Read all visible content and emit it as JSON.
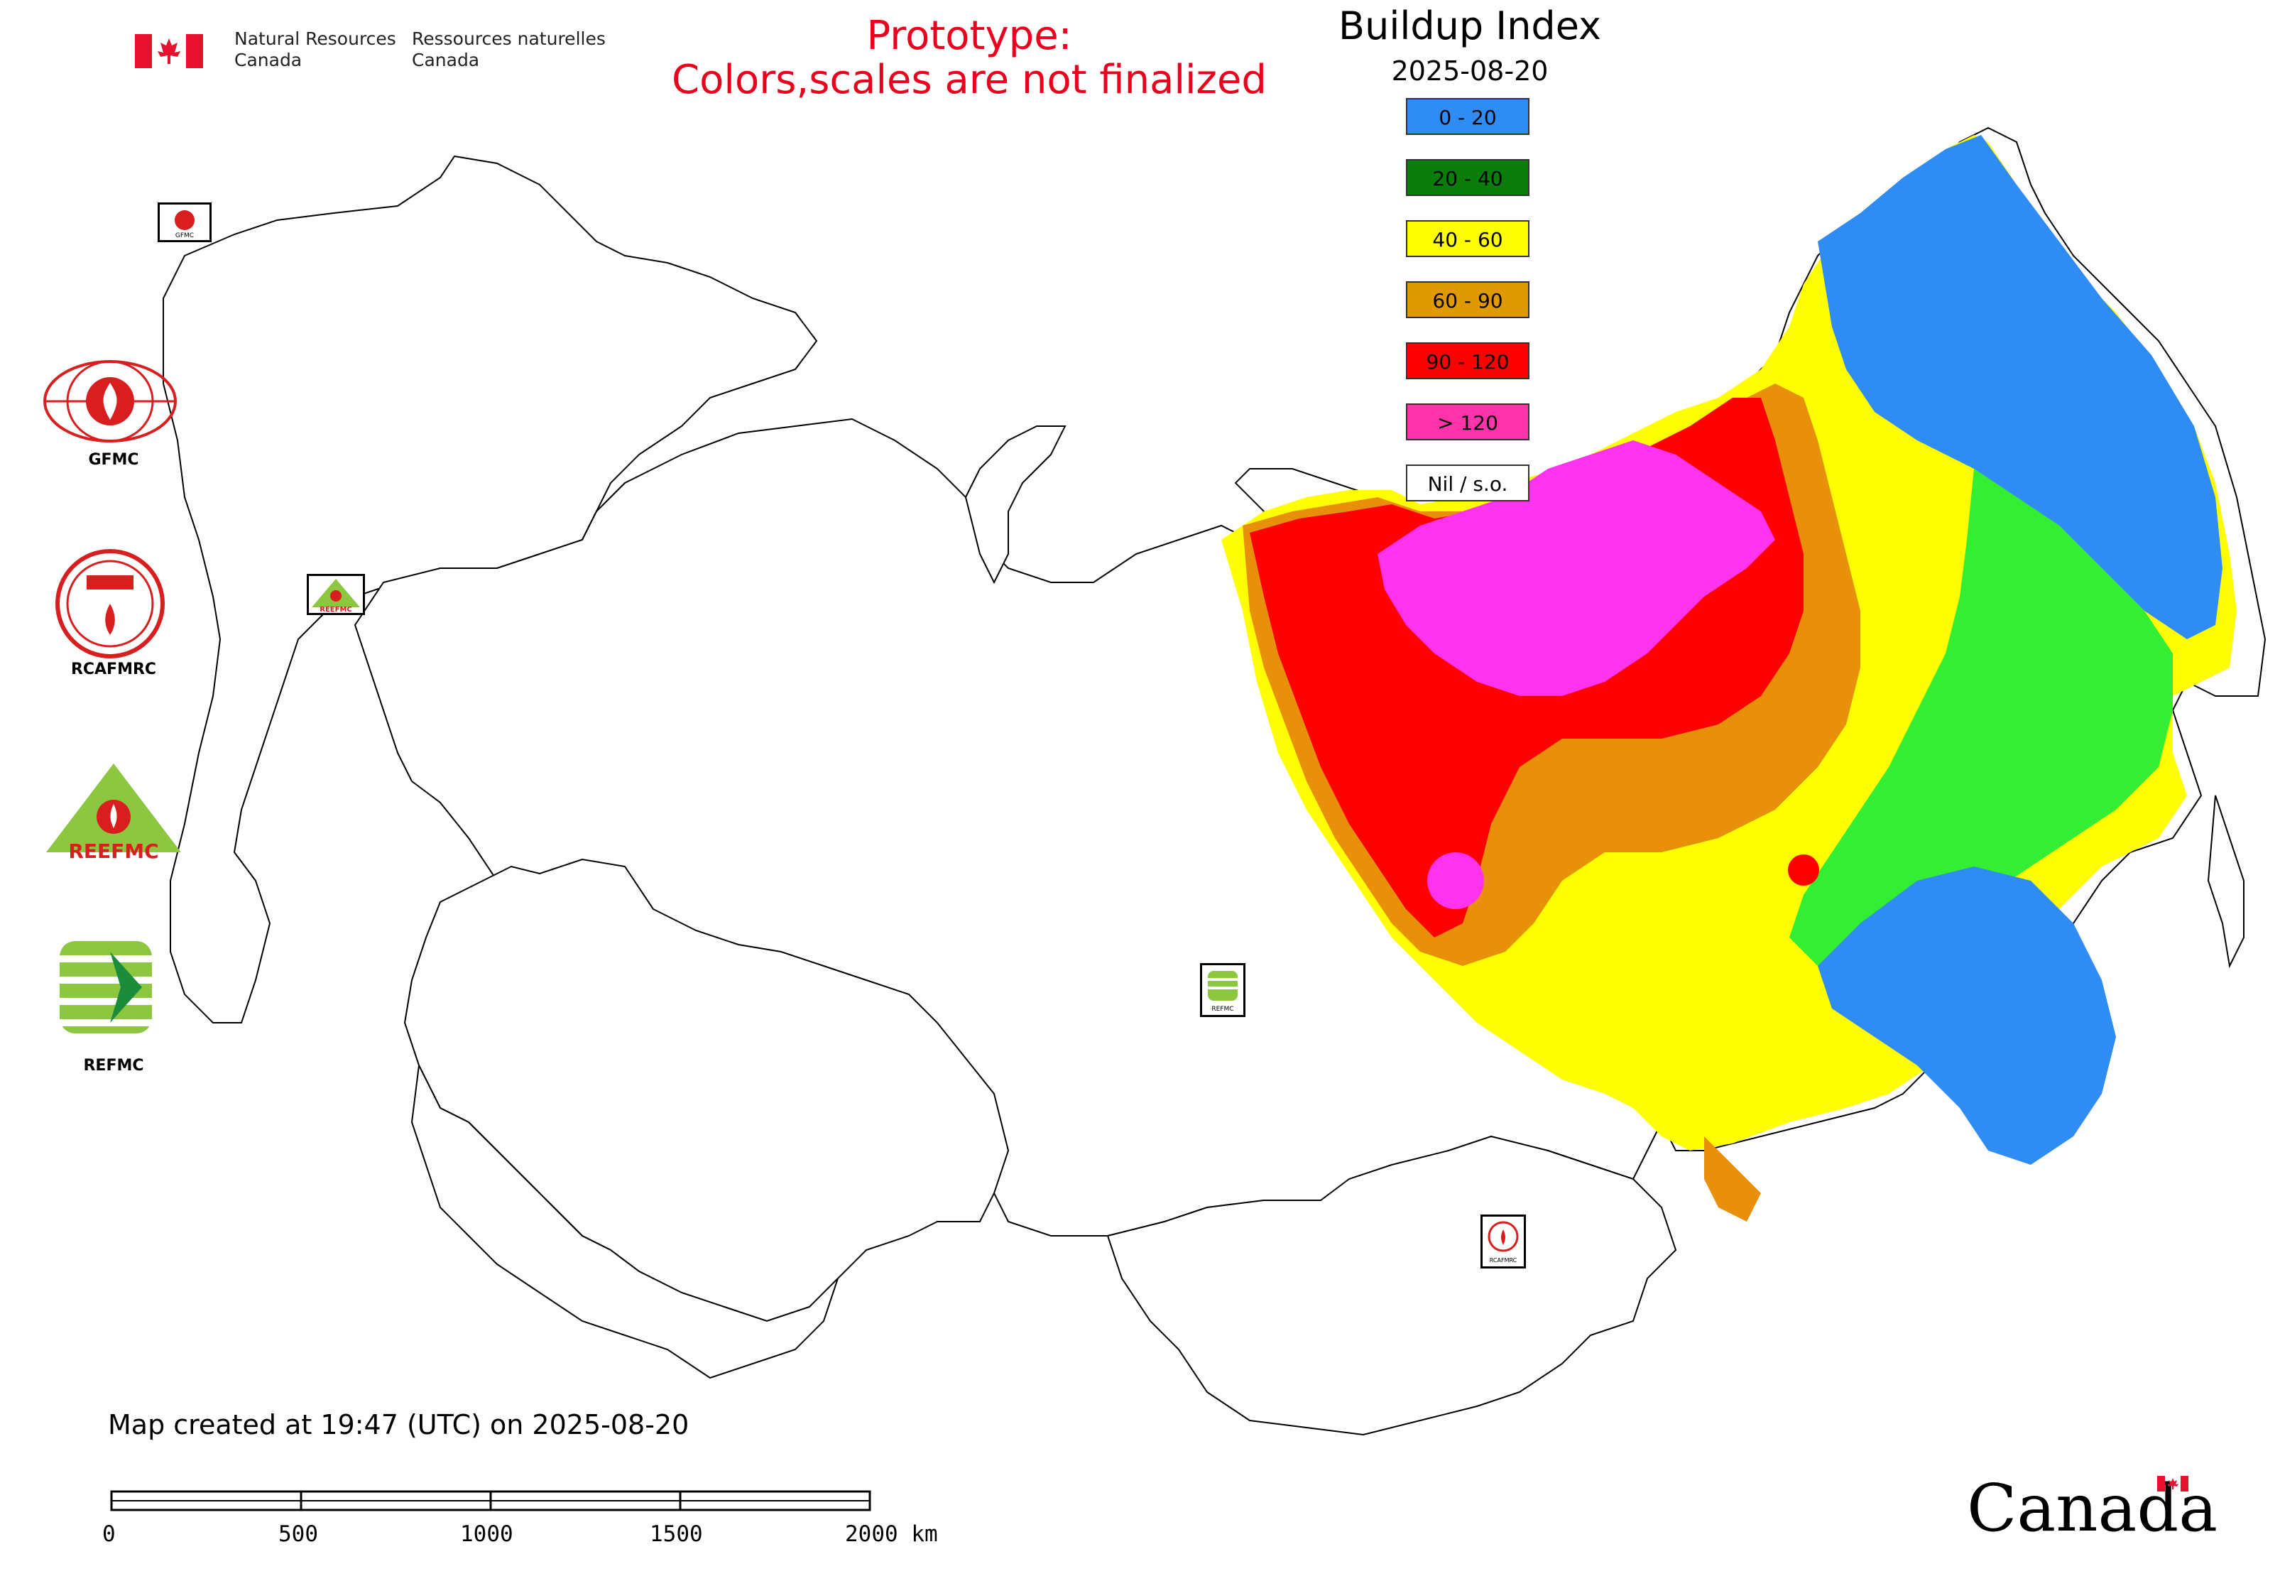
{
  "header": {
    "agency_en_line1": "Natural Resources",
    "agency_en_line2": "Canada",
    "agency_fr_line1": "Ressources naturelles",
    "agency_fr_line2": "Canada"
  },
  "prototype_notice": {
    "line1": "Prototype:",
    "line2": "Colors,scales are not finalized",
    "color": "#e8001c"
  },
  "legend": {
    "title": "Buildup Index",
    "date": "2025-08-20",
    "items": [
      {
        "label": "0 - 20",
        "color": "#2f8cf2"
      },
      {
        "label": "20 - 40",
        "color": "#0a7d0a"
      },
      {
        "label": "40 - 60",
        "color": "#ffff00"
      },
      {
        "label": "60 - 90",
        "color": "#e09a00"
      },
      {
        "label": "90 - 120",
        "color": "#ff0000"
      },
      {
        "label": "> 120",
        "color": "#ff33aa"
      },
      {
        "label": "Nil / s.o.",
        "color": "#ffffff"
      }
    ]
  },
  "organizations": [
    {
      "label": "GFMC",
      "icon": "gfmc-logo-icon"
    },
    {
      "label": "RCAFMRC",
      "icon": "rcafmrc-logo-icon"
    },
    {
      "label": "",
      "icon": "reefmc-logo-icon",
      "logo_text": "REEFMC"
    },
    {
      "label": "REFMC",
      "icon": "refmc-logo-icon"
    }
  ],
  "map_markers": [
    "GFMC",
    "REEFMC",
    "REFMC",
    "RCAFMRC"
  ],
  "footer": {
    "created": "Map created at 19:47 (UTC) on 2025-08-20",
    "scale_labels": [
      "0",
      "500",
      "1000",
      "1500",
      "2000 km"
    ],
    "wordmark": "Canada"
  },
  "colors": {
    "canada_red": "#e8112d",
    "boundary": "#000000"
  }
}
